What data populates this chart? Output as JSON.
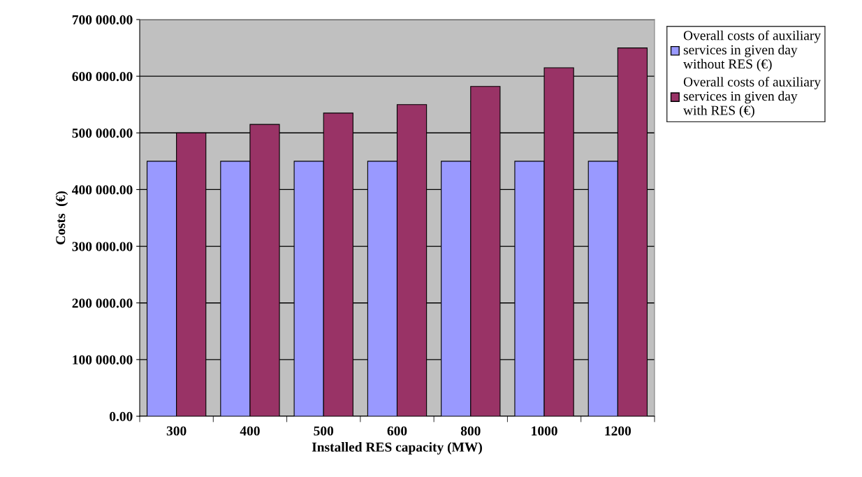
{
  "chart_data": {
    "type": "bar",
    "xlabel": "Installed RES capacity (MW)",
    "ylabel": "Costs  (€)",
    "categories": [
      "300",
      "400",
      "500",
      "600",
      "800",
      "1000",
      "1200"
    ],
    "series": [
      {
        "name": "Overall costs of auxiliary\nservices in given day\nwithout RES (€)",
        "color": "#9999ff",
        "values": [
          450000,
          450000,
          450000,
          450000,
          450000,
          450000,
          450000
        ]
      },
      {
        "name": "Overall costs of auxiliary\nservices in given day\nwith RES (€)",
        "color": "#993366",
        "values": [
          500000,
          515000,
          535000,
          550000,
          582000,
          615000,
          650000
        ]
      }
    ],
    "ylim": [
      0,
      700000
    ],
    "yticks": [
      {
        "value": 0,
        "label": "0.00"
      },
      {
        "value": 100000,
        "label": "100 000.00"
      },
      {
        "value": 200000,
        "label": "200 000.00"
      },
      {
        "value": 300000,
        "label": "300 000.00"
      },
      {
        "value": 400000,
        "label": "400 000.00"
      },
      {
        "value": 500000,
        "label": "500 000.00"
      },
      {
        "value": 600000,
        "label": "600 000.00"
      },
      {
        "value": 700000,
        "label": "700 000.00"
      }
    ],
    "grid": "y",
    "legend": "top right"
  }
}
